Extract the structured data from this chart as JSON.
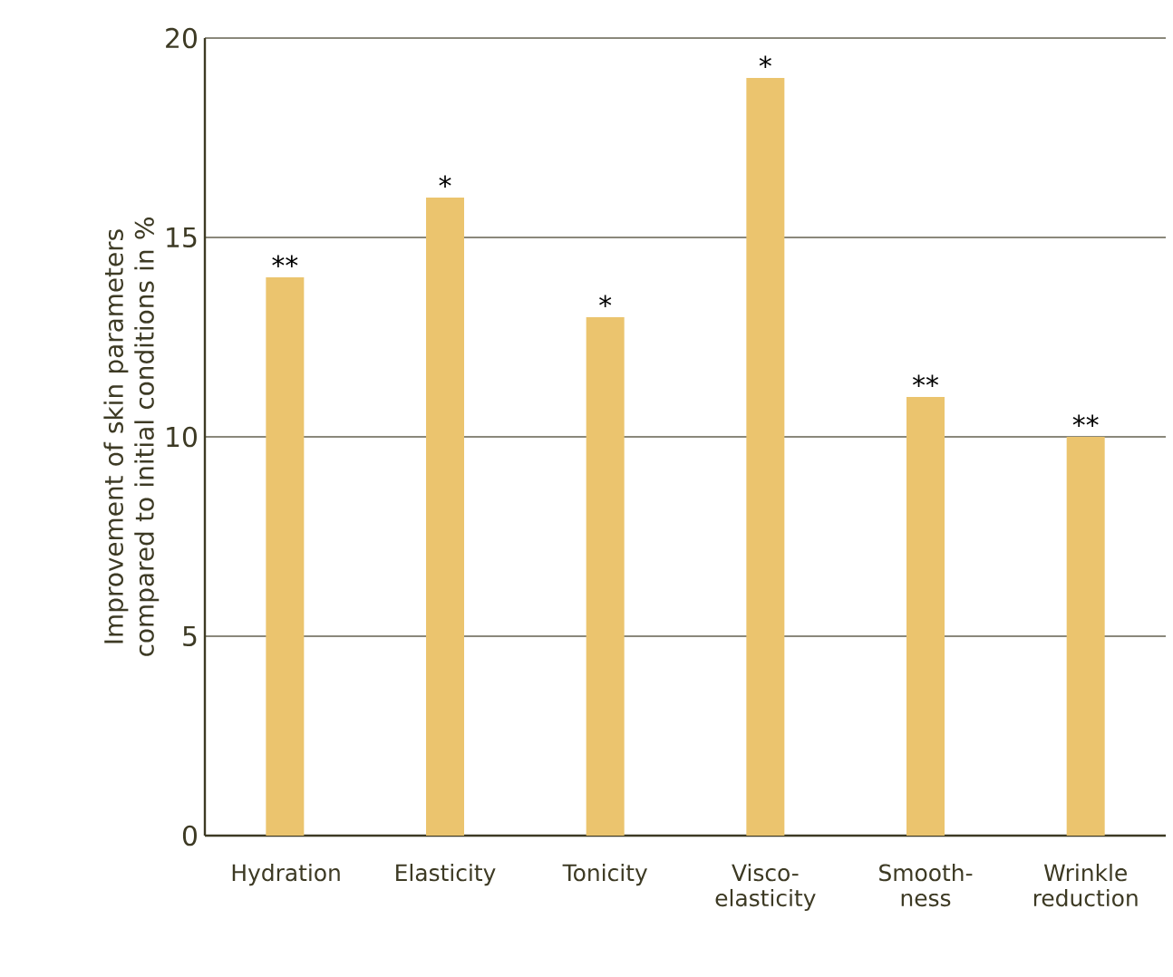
{
  "chart_data": {
    "type": "bar",
    "ylabel": "Improvement of skin parameters compared to initial conditions in %",
    "categories": [
      "Hydration",
      "Elasticity",
      "Tonicity",
      "Visco- elasticity",
      "Smooth- ness",
      "Wrinkle reduction"
    ],
    "values": [
      14,
      16,
      13,
      19,
      11,
      10
    ],
    "color": "#ebc46e",
    "ylim": [
      0,
      20
    ],
    "yticks": [
      0,
      5,
      10,
      15,
      20
    ],
    "grid": "y",
    "annotations": [
      {
        "text": "**",
        "x": "Hydration",
        "y": 14
      },
      {
        "text": "*",
        "x": "Elasticity",
        "y": 16
      },
      {
        "text": "*",
        "x": "Tonicity",
        "y": 13
      },
      {
        "text": "*",
        "x": "Visco- elasticity",
        "y": 19
      },
      {
        "text": "**",
        "x": "Smooth- ness",
        "y": 11
      },
      {
        "text": "**",
        "x": "Wrinkle reduction",
        "y": 10
      }
    ]
  }
}
